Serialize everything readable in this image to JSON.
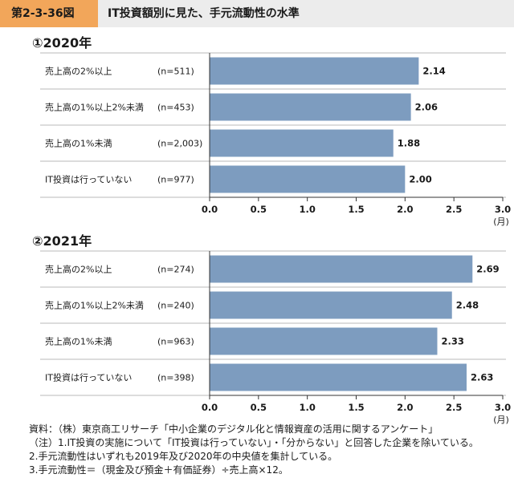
{
  "header": {
    "figure_number": "第2-3-36図",
    "title": "IT投資額別に見た、手元流動性の水準"
  },
  "colors": {
    "bar": "#7d9cbf",
    "badge": "#f2a65a",
    "header_band": "#ececec",
    "row_line": "#b9b9b9"
  },
  "chart_data": [
    {
      "type": "bar",
      "orientation": "horizontal",
      "title": "①2020年",
      "categories": [
        "売上高の2%以上",
        "売上高の1%以上2%未満",
        "売上高の1%未満",
        "IT投資は行っていない"
      ],
      "sample_sizes": [
        "(n=511)",
        "(n=453)",
        "(n=2,003)",
        "(n=977)"
      ],
      "values": [
        2.14,
        2.06,
        1.88,
        2.0
      ],
      "data_labels": [
        "2.14",
        "2.06",
        "1.88",
        "2.00"
      ],
      "xlim": [
        0,
        3.0
      ],
      "xticks": [
        "0.0",
        "0.5",
        "1.0",
        "1.5",
        "2.0",
        "2.5",
        "3.0"
      ],
      "xunit": "(月)",
      "grid": false,
      "legend": "none"
    },
    {
      "type": "bar",
      "orientation": "horizontal",
      "title": "②2021年",
      "categories": [
        "売上高の2%以上",
        "売上高の1%以上2%未満",
        "売上高の1%未満",
        "IT投資は行っていない"
      ],
      "sample_sizes": [
        "(n=274)",
        "(n=240)",
        "(n=963)",
        "(n=398)"
      ],
      "values": [
        2.69,
        2.48,
        2.33,
        2.63
      ],
      "data_labels": [
        "2.69",
        "2.48",
        "2.33",
        "2.63"
      ],
      "xlim": [
        0,
        3.0
      ],
      "xticks": [
        "0.0",
        "0.5",
        "1.0",
        "1.5",
        "2.0",
        "2.5",
        "3.0"
      ],
      "xunit": "(月)",
      "grid": false,
      "legend": "none"
    }
  ],
  "notes": [
    "資料：（株）東京商工リサーチ「中小企業のデジタル化と情報資産の活用に関するアンケート」",
    "（注）1.IT投資の実施について「IT投資は行っていない」・「分からない」と回答した企業を除いている。",
    "2.手元流動性はいずれも2019年及び2020年の中央値を集計している。",
    "3.手元流動性＝（現金及び預金＋有価証券）÷売上高×12。"
  ]
}
